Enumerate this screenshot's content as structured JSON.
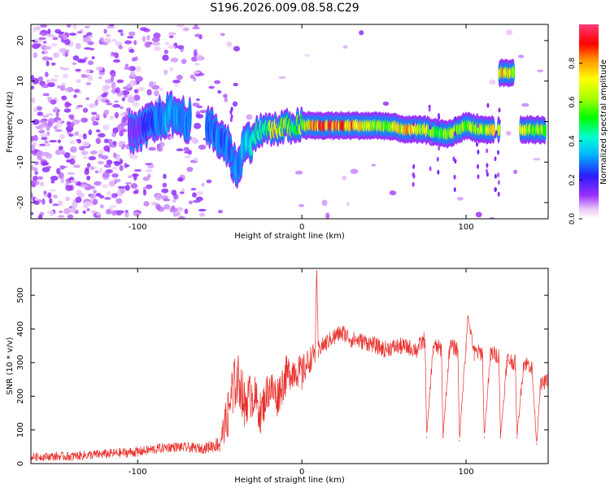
{
  "title": "S196.2026.009.08.58.C29",
  "colors": {
    "snr_line": "#e8302c",
    "spectrogram_dots": "#7a2be0",
    "axis": "#000000",
    "background": "#ffffff"
  },
  "chart_data": [
    {
      "type": "heatmap",
      "title": "S196.2026.009.08.58.C29",
      "xlabel": "Height of straight line (km)",
      "ylabel": "Frequency (Hz)",
      "xlim": [
        -165,
        150
      ],
      "ylim": [
        -24,
        24
      ],
      "x_ticks": [
        -100,
        0,
        100
      ],
      "x_tick_labels": [
        "-100",
        "0",
        "100"
      ],
      "y_ticks": [
        -20,
        -10,
        0,
        10,
        20
      ],
      "y_tick_labels": [
        "-20",
        "-10",
        "0",
        "10",
        "20"
      ],
      "colorbar": {
        "label": "Normalized spectral amplitude",
        "range": [
          0,
          1
        ],
        "ticks": [
          0.0,
          0.2,
          0.4,
          0.6,
          0.8
        ],
        "tick_labels": [
          "0.0",
          "0.2",
          "0.4",
          "0.6",
          "0.8"
        ],
        "colormap": "rainbow (white-magenta-purple-blue-cyan-green-yellow-orange-red-pink)"
      },
      "ridge": [
        {
          "x": -100,
          "freq": -3,
          "amp": 0.15
        },
        {
          "x": -90,
          "freq": 0,
          "amp": 0.3
        },
        {
          "x": -80,
          "freq": 2,
          "amp": 0.35
        },
        {
          "x": -55,
          "freq": -2,
          "amp": 0.3
        },
        {
          "x": -45,
          "freq": -6,
          "amp": 0.3
        },
        {
          "x": -40,
          "freq": -12,
          "amp": 0.35
        },
        {
          "x": -35,
          "freq": -6,
          "amp": 0.35
        },
        {
          "x": -25,
          "freq": -2,
          "amp": 0.5
        },
        {
          "x": -15,
          "freq": -2,
          "amp": 0.75
        },
        {
          "x": -5,
          "freq": -1,
          "amp": 0.5
        },
        {
          "x": 10,
          "freq": -1,
          "amp": 0.95
        },
        {
          "x": 30,
          "freq": -1,
          "amp": 0.85
        },
        {
          "x": 50,
          "freq": -1,
          "amp": 0.6
        },
        {
          "x": 65,
          "freq": -2,
          "amp": 0.8
        },
        {
          "x": 75,
          "freq": -2,
          "amp": 0.7
        },
        {
          "x": 85,
          "freq": -3,
          "amp": 0.55
        },
        {
          "x": 90,
          "freq": -3,
          "amp": 0.7
        },
        {
          "x": 100,
          "freq": -1,
          "amp": 0.6
        },
        {
          "x": 110,
          "freq": -2,
          "amp": 0.65
        },
        {
          "x": 115,
          "freq": -2,
          "amp": 0.7
        },
        {
          "x": 125,
          "freq": 12,
          "amp": 0.75
        },
        {
          "x": 138,
          "freq": -2,
          "amp": 0.7
        },
        {
          "x": 146,
          "freq": -2,
          "amp": 0.6
        }
      ]
    },
    {
      "type": "line",
      "xlabel": "Height of straight line (km)",
      "ylabel": "SNR (10 * v/v)",
      "xlim": [
        -165,
        150
      ],
      "ylim": [
        0,
        580
      ],
      "x_ticks": [
        -100,
        0,
        100
      ],
      "x_tick_labels": [
        "-100",
        "0",
        "100"
      ],
      "y_ticks": [
        0,
        100,
        200,
        300,
        400,
        500
      ],
      "y_tick_labels": [
        "0",
        "100",
        "200",
        "300",
        "400",
        "500"
      ],
      "series": [
        {
          "name": "SNR",
          "x": [
            -165,
            -140,
            -100,
            -80,
            -60,
            -50,
            -45,
            -42,
            -38,
            -35,
            -30,
            -25,
            -20,
            -15,
            -10,
            -5,
            0,
            5,
            8,
            9,
            10,
            15,
            20,
            25,
            30,
            40,
            50,
            60,
            70,
            75,
            76,
            80,
            85,
            86,
            90,
            95,
            96,
            100,
            101,
            105,
            110,
            111,
            115,
            120,
            121,
            125,
            130,
            131,
            135,
            140,
            143,
            145,
            150
          ],
          "values": [
            20,
            22,
            35,
            50,
            45,
            60,
            150,
            230,
            250,
            180,
            210,
            150,
            230,
            200,
            260,
            280,
            270,
            310,
            330,
            575,
            340,
            360,
            380,
            390,
            370,
            360,
            340,
            350,
            340,
            370,
            80,
            350,
            340,
            80,
            350,
            340,
            70,
            360,
            440,
            330,
            330,
            80,
            330,
            320,
            80,
            310,
            300,
            80,
            300,
            290,
            60,
            230,
            250
          ],
          "band_half_width": [
            12,
            14,
            15,
            15,
            15,
            25,
            70,
            80,
            80,
            70,
            70,
            60,
            60,
            60,
            60,
            50,
            50,
            40,
            30,
            10,
            25,
            25,
            25,
            25,
            25,
            25,
            25,
            25,
            25,
            25,
            5,
            25,
            25,
            5,
            25,
            25,
            5,
            25,
            5,
            25,
            25,
            5,
            25,
            25,
            5,
            25,
            25,
            5,
            25,
            25,
            5,
            25,
            20
          ]
        }
      ]
    }
  ]
}
